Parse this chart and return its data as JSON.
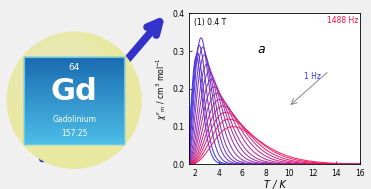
{
  "title": "",
  "xlabel": "T / K",
  "ylabel": "χ ''_m / cm³ mol⁻¹",
  "xlim": [
    1.5,
    16
  ],
  "ylim": [
    0,
    0.4
  ],
  "xticks": [
    2,
    4,
    6,
    8,
    10,
    12,
    14,
    16
  ],
  "ytick_vals": [
    0.0,
    0.1,
    0.2,
    0.3,
    0.4
  ],
  "ytick_labels": [
    "0.0",
    "0.1",
    "0.2",
    "0.3",
    "0.4"
  ],
  "annotation_label": "(1) 0.4 T",
  "annotation_a": "a",
  "label_high": "1488 Hz",
  "label_low": "1 Hz",
  "n_curves": 16,
  "T_min": 1.5,
  "T_max": 16.5,
  "peak_temps": [
    2.1,
    2.2,
    2.35,
    2.5,
    2.65,
    2.8,
    3.0,
    3.2,
    3.4,
    3.6,
    3.85,
    4.1,
    4.35,
    4.6,
    4.9,
    5.2
  ],
  "peak_heights": [
    0.285,
    0.295,
    0.315,
    0.335,
    0.31,
    0.29,
    0.265,
    0.245,
    0.225,
    0.205,
    0.188,
    0.172,
    0.155,
    0.138,
    0.12,
    0.1
  ],
  "log_widths": [
    0.22,
    0.23,
    0.24,
    0.25,
    0.26,
    0.27,
    0.28,
    0.29,
    0.3,
    0.31,
    0.32,
    0.33,
    0.34,
    0.35,
    0.36,
    0.37
  ],
  "color_low": [
    0.18,
    0.18,
    0.95
  ],
  "color_high": [
    0.98,
    0.08,
    0.35
  ],
  "bg_color": "#f0f0f0",
  "plot_bg": "#ffffff",
  "sphere_color": "#e8e8a0",
  "sphere_highlight": "#f5f5d0",
  "box_color_top": "#4dbde8",
  "box_color_bot": "#1a6ab0",
  "arrow_color": "#3333cc",
  "text_color": "#ffffff"
}
